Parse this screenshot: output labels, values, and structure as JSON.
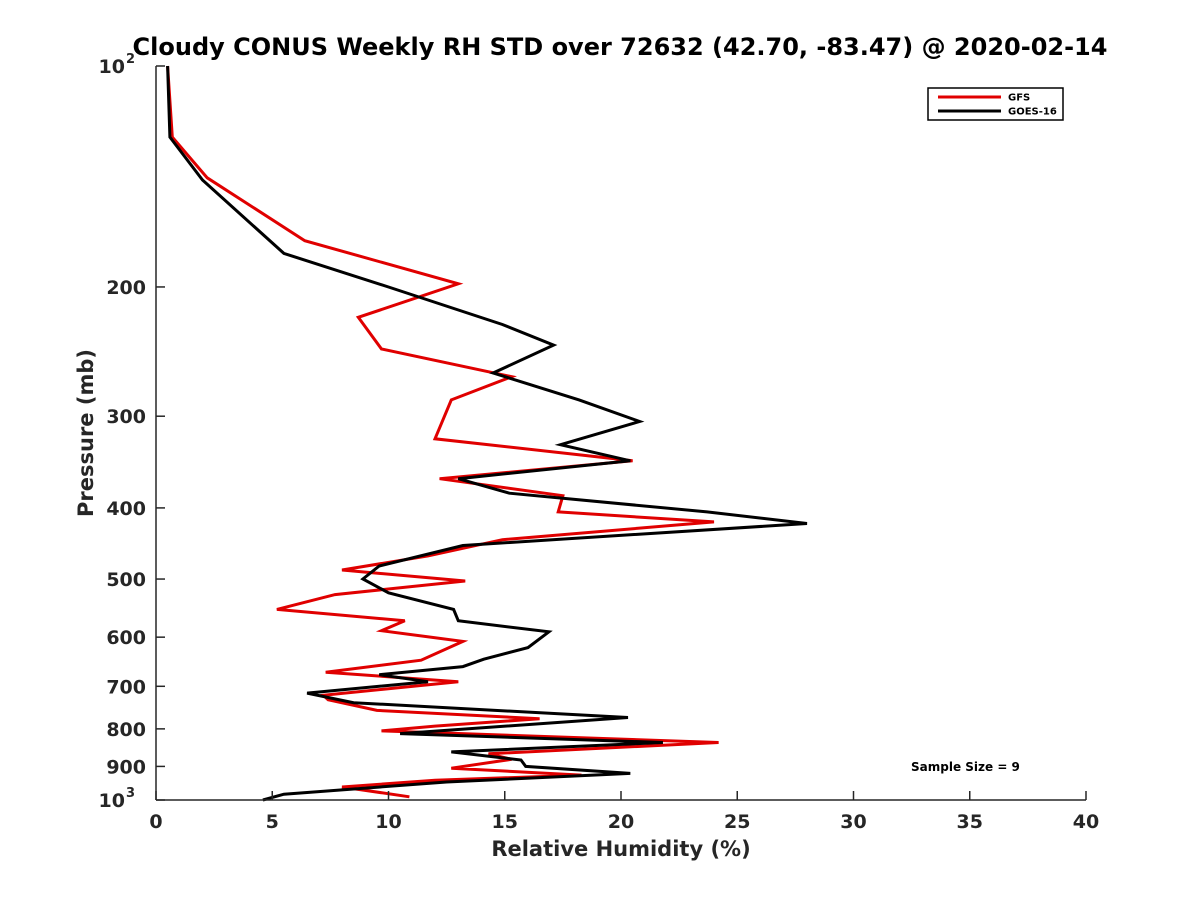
{
  "chart_data": {
    "type": "line",
    "title": "Cloudy CONUS Weekly RH STD over 72632 (42.70, -83.47) @ 2020-02-14",
    "xlabel": "Relative Humidity (%)",
    "ylabel": "Pressure (mb)",
    "xlim": [
      0,
      40
    ],
    "ylim": [
      100,
      1000
    ],
    "y_scale": "log",
    "y_reversed": true,
    "grid": false,
    "legend_position": "top-right",
    "x_ticks": [
      "0",
      "5",
      "10",
      "15",
      "20",
      "25",
      "30",
      "35",
      "40"
    ],
    "x_tick_values": [
      0,
      5,
      10,
      15,
      20,
      25,
      30,
      35,
      40
    ],
    "y_ticks": [
      {
        "value": 100,
        "base": "10",
        "exp": "2"
      },
      {
        "value": 200,
        "label": "200"
      },
      {
        "value": 300,
        "label": "300"
      },
      {
        "value": 400,
        "label": "400"
      },
      {
        "value": 500,
        "label": "500"
      },
      {
        "value": 600,
        "label": "600"
      },
      {
        "value": 700,
        "label": "700"
      },
      {
        "value": 800,
        "label": "800"
      },
      {
        "value": 900,
        "label": "900"
      },
      {
        "value": 1000,
        "base": "10",
        "exp": "3"
      }
    ],
    "annotation": "Sample Size = 9",
    "series": [
      {
        "name": "GFS",
        "color": "#e00000",
        "points": [
          [
            0.5,
            100
          ],
          [
            0.7,
            125
          ],
          [
            2.2,
            142
          ],
          [
            6.4,
            173
          ],
          [
            13.0,
            198
          ],
          [
            8.7,
            220
          ],
          [
            9.7,
            243
          ],
          [
            15.3,
            265
          ],
          [
            12.7,
            285
          ],
          [
            12.0,
            322
          ],
          [
            20.5,
            345
          ],
          [
            12.2,
            365
          ],
          [
            17.5,
            385
          ],
          [
            17.3,
            405
          ],
          [
            24.0,
            418
          ],
          [
            14.9,
            442
          ],
          [
            11.7,
            465
          ],
          [
            8.0,
            486
          ],
          [
            13.3,
            503
          ],
          [
            7.7,
            525
          ],
          [
            5.2,
            550
          ],
          [
            10.7,
            570
          ],
          [
            9.7,
            588
          ],
          [
            13.2,
            608
          ],
          [
            11.4,
            645
          ],
          [
            7.3,
            670
          ],
          [
            13.0,
            690
          ],
          [
            7.2,
            720
          ],
          [
            7.4,
            730
          ],
          [
            9.5,
            755
          ],
          [
            16.5,
            775
          ],
          [
            12.0,
            793
          ],
          [
            9.7,
            805
          ],
          [
            24.2,
            835
          ],
          [
            14.3,
            865
          ],
          [
            15.3,
            880
          ],
          [
            12.7,
            905
          ],
          [
            18.3,
            925
          ],
          [
            12.0,
            940
          ],
          [
            8.0,
            960
          ],
          [
            10.9,
            990
          ]
        ]
      },
      {
        "name": "GOES-16",
        "color": "#000000",
        "points": [
          [
            0.5,
            100
          ],
          [
            0.6,
            125
          ],
          [
            2.0,
            143
          ],
          [
            5.5,
            180
          ],
          [
            10.0,
            200
          ],
          [
            14.9,
            225
          ],
          [
            17.1,
            240
          ],
          [
            14.5,
            262
          ],
          [
            18.2,
            285
          ],
          [
            20.8,
            305
          ],
          [
            17.4,
            328
          ],
          [
            20.4,
            345
          ],
          [
            13.0,
            365
          ],
          [
            15.2,
            382
          ],
          [
            23.7,
            405
          ],
          [
            28.0,
            420
          ],
          [
            13.2,
            450
          ],
          [
            9.6,
            480
          ],
          [
            8.9,
            500
          ],
          [
            10.0,
            522
          ],
          [
            12.8,
            550
          ],
          [
            13.0,
            570
          ],
          [
            16.9,
            590
          ],
          [
            16.0,
            620
          ],
          [
            14.1,
            643
          ],
          [
            13.2,
            658
          ],
          [
            9.6,
            675
          ],
          [
            11.7,
            690
          ],
          [
            6.5,
            715
          ],
          [
            8.5,
            737
          ],
          [
            20.3,
            772
          ],
          [
            10.5,
            812
          ],
          [
            21.8,
            835
          ],
          [
            12.7,
            860
          ],
          [
            15.7,
            882
          ],
          [
            15.9,
            900
          ],
          [
            20.4,
            920
          ],
          [
            12.5,
            945
          ],
          [
            5.5,
            982
          ],
          [
            4.6,
            1000
          ]
        ]
      }
    ]
  }
}
